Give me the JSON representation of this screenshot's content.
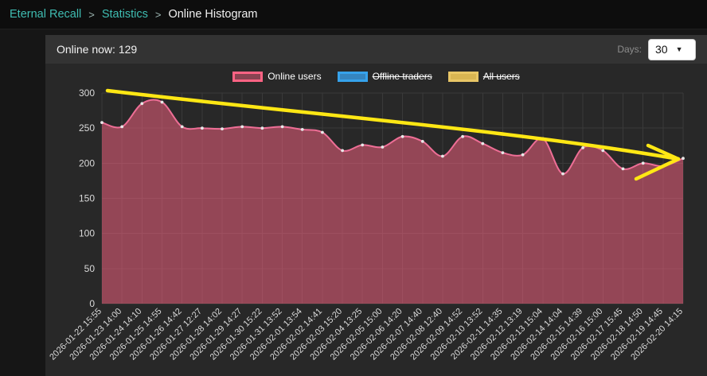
{
  "breadcrumb": {
    "items": [
      "Eternal Recall",
      "Statistics",
      "Online Histogram"
    ],
    "separator": ">"
  },
  "header": {
    "online_now_label": "Online now:",
    "online_now_value": "129",
    "days_label": "Days:",
    "days_value": "30"
  },
  "legend": [
    {
      "label": "Online users",
      "fill": "rgba(255,99,132,0.45)",
      "border": "#ff6384",
      "hidden": false
    },
    {
      "label": "Offline traders",
      "fill": "#3585c0",
      "border": "#36a2eb",
      "hidden": true
    },
    {
      "label": "All users",
      "fill": "#d9b552",
      "border": "#e8c666",
      "hidden": true
    }
  ],
  "colors": {
    "accent_teal": "#3fbdb2",
    "line": "#ee6e96",
    "fill": "rgba(255,99,132,0.5)",
    "point": "#e8e8e8",
    "annotation_yellow": "#ffe714"
  },
  "chart_data": {
    "type": "area",
    "title": "",
    "xlabel": "",
    "ylabel": "",
    "ylim": [
      0,
      300
    ],
    "yticks": [
      0,
      50,
      100,
      150,
      200,
      250,
      300
    ],
    "grid": true,
    "legend_position": "top",
    "x": [
      "2026-01-22 15:55",
      "2026-01-23 14:00",
      "2026-01-24 14:10",
      "2026-01-25 14:55",
      "2026-01-26 14:42",
      "2026-01-27 12:27",
      "2026-01-28 14:02",
      "2026-01-29 14:27",
      "2026-01-30 15:22",
      "2026-01-31 13:52",
      "2026-02-01 13:54",
      "2026-02-02 14:41",
      "2026-02-03 15:20",
      "2026-02-04 13:25",
      "2026-02-05 15:00",
      "2026-02-06 14:20",
      "2026-02-07 14:40",
      "2026-02-08 12:40",
      "2026-02-09 14:52",
      "2026-02-10 13:52",
      "2026-02-11 14:35",
      "2026-02-12 13:19",
      "2026-02-13 15:04",
      "2026-02-14 14:04",
      "2026-02-15 14:39",
      "2026-02-16 15:00",
      "2026-02-17 15:45",
      "2026-02-18 14:50",
      "2026-02-19 14:45",
      "2026-02-20 14:15"
    ],
    "series": [
      {
        "name": "Online users",
        "values": [
          258,
          252,
          285,
          287,
          252,
          250,
          249,
          252,
          250,
          252,
          248,
          244,
          218,
          226,
          223,
          238,
          231,
          210,
          238,
          228,
          215,
          212,
          235,
          185,
          222,
          218,
          192,
          200,
          196,
          207
        ]
      }
    ],
    "hidden_series": [
      "Offline traders",
      "All users"
    ],
    "annotation": {
      "type": "arrow",
      "color": "#ffe714",
      "description": "hand-drawn yellow downward trend arrow from ~300 at left to ~200 at right"
    }
  }
}
